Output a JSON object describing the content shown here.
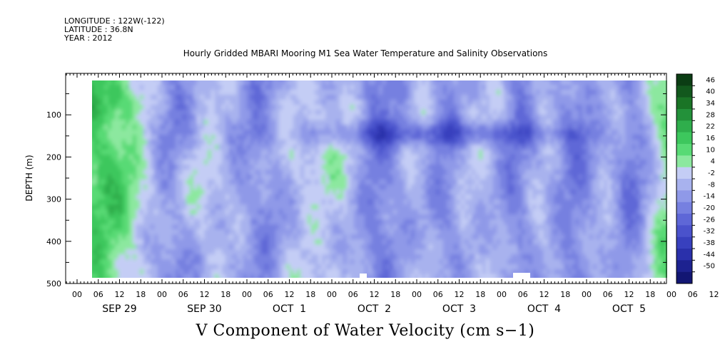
{
  "meta": {
    "longitude": "LONGITUDE : 122W(-122)",
    "latitude": "LATITUDE : 36.8N",
    "year": "YEAR : 2012"
  },
  "chart_data": {
    "type": "heatmap",
    "title": "Hourly Gridded MBARI Mooring M1 Sea Water Temperature and Salinity Observations",
    "caption": "V Component of Water Velocity (cm s−1)",
    "ylabel": "DEPTH (m)",
    "xlabel": "",
    "ylim": [
      500,
      0
    ],
    "y_ticks": [
      100,
      200,
      300,
      400,
      500
    ],
    "x_hour_labels": [
      "00",
      "06",
      "12",
      "18",
      "00",
      "06",
      "12",
      "18",
      "00",
      "06",
      "12",
      "18",
      "00",
      "06",
      "12",
      "18",
      "00",
      "06",
      "12",
      "18",
      "00",
      "06",
      "12",
      "18",
      "00",
      "06",
      "12",
      "18",
      "00",
      "06",
      "12",
      "18"
    ],
    "x_day_labels": [
      "SEP 29",
      "SEP 30",
      "OCT  1",
      "OCT  2",
      "OCT  3",
      "OCT  4",
      "OCT  5"
    ],
    "colorbar": {
      "labels": [
        "46",
        "40",
        "34",
        "28",
        "22",
        "16",
        "10",
        "4",
        "-2",
        "-8",
        "-14",
        "-20",
        "-26",
        "-32",
        "-38",
        "-44",
        "-50"
      ],
      "colors_high_to_low": [
        "#0b3d14",
        "#12581d",
        "#1a7426",
        "#23913a",
        "#2fae4c",
        "#3dc75d",
        "#58da75",
        "#8ce89f",
        "#c4cdf5",
        "#a8b2ee",
        "#8f99e8",
        "#7680e0",
        "#5e67d7",
        "#4a52cc",
        "#3840be",
        "#2a30ab",
        "#1d2290",
        "#121673"
      ]
    },
    "observations": "Velocities mostly between -30 and +30 cm/s; positive (green) bands early Sep 29, Oct 3–4 and Oct 5, strong negative (blue) core near 130–160 m on Oct 1–2; data gaps near 480 m on Oct 2 and Oct 4."
  }
}
